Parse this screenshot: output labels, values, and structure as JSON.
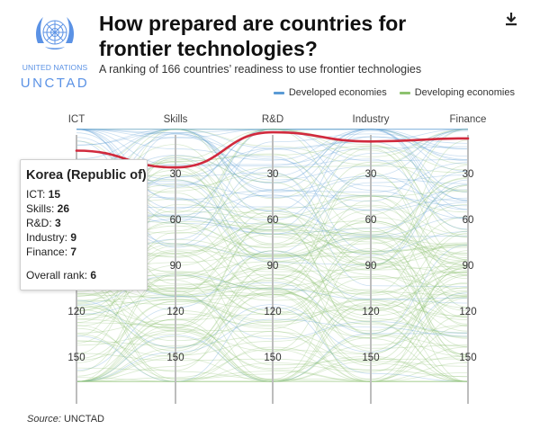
{
  "header": {
    "title": "How prepared are countries for frontier technologies?",
    "subtitle": "A ranking of 166 countries’ readiness to use frontier technologies",
    "download_icon": "download-icon"
  },
  "logo": {
    "line1": "UNITED NATIONS",
    "line2": "UNCTAD"
  },
  "legend": [
    {
      "label": "Developed economies",
      "color": "#5b9bd5"
    },
    {
      "label": "Developing economies",
      "color": "#8dc26f"
    }
  ],
  "chart_data": {
    "type": "parallel-coordinates",
    "axes": [
      "ICT",
      "Skills",
      "R&D",
      "Industry",
      "Finance"
    ],
    "y_ticks": [
      "30",
      "60",
      "90",
      "120",
      "150"
    ],
    "y_tick_values": [
      30,
      60,
      90,
      120,
      150
    ],
    "rank_range": [
      1,
      166
    ],
    "highlighted": {
      "country": "Korea (Republic of)",
      "values": [
        15,
        26,
        3,
        9,
        7
      ],
      "color": "#d12a3d"
    },
    "series_colors": {
      "developed": "#5b9bd5",
      "developing": "#8dc26f"
    },
    "grid": "vertical axis lines"
  },
  "tooltip": {
    "country": "Korea (Republic of)",
    "rows": [
      {
        "label": "ICT: ",
        "value": "15"
      },
      {
        "label": "Skills: ",
        "value": "26"
      },
      {
        "label": "R&D: ",
        "value": "3"
      },
      {
        "label": "Industry: ",
        "value": "9"
      },
      {
        "label": "Finance: ",
        "value": "7"
      }
    ],
    "overall_label": "Overall rank: ",
    "overall_value": "6"
  },
  "source": {
    "label": "Source:",
    "text": " UNCTAD"
  }
}
